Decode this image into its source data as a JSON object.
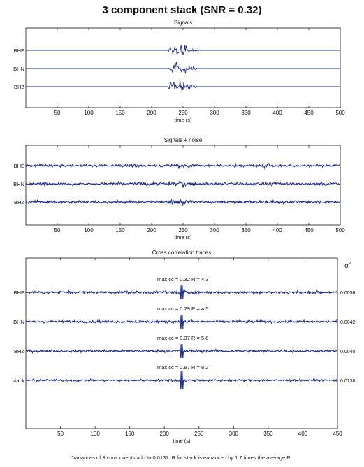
{
  "figure": {
    "title": "3 component stack (SNR = 0.32)",
    "footer": "Variances of 3 components add to 0.0137.  R for stack is enhanced by 1.7 times the average R."
  },
  "colors": {
    "trace": "#1f2f8f",
    "axis": "#111111",
    "background": "#ffffff"
  },
  "chart_data": [
    {
      "type": "line",
      "title": "Signals",
      "xlabel": "time (s)",
      "ylabel": "",
      "xlim": [
        0,
        500
      ],
      "xticks": [
        50,
        100,
        150,
        200,
        250,
        300,
        350,
        400,
        450,
        500
      ],
      "series": [
        {
          "name": "BHE",
          "burst_window": [
            225,
            275
          ],
          "amplitude": 1.0,
          "noise": 0.0
        },
        {
          "name": "BHN",
          "burst_window": [
            225,
            275
          ],
          "amplitude": 1.0,
          "noise": 0.0
        },
        {
          "name": "BHZ",
          "burst_window": [
            225,
            275
          ],
          "amplitude": 1.0,
          "noise": 0.0
        }
      ],
      "grid": false
    },
    {
      "type": "line",
      "title": "Signals + noise",
      "xlabel": "time (s)",
      "ylabel": "",
      "xlim": [
        0,
        500
      ],
      "xticks": [
        50,
        100,
        150,
        200,
        250,
        300,
        350,
        400,
        450,
        500
      ],
      "series": [
        {
          "name": "BHE",
          "burst_window": [
            225,
            275
          ],
          "amplitude": 0.5,
          "noise": 1.0
        },
        {
          "name": "BHN",
          "burst_window": [
            225,
            275
          ],
          "amplitude": 0.5,
          "noise": 1.0
        },
        {
          "name": "BHZ",
          "burst_window": [
            225,
            275
          ],
          "amplitude": 0.5,
          "noise": 1.0
        }
      ],
      "grid": false
    },
    {
      "type": "line",
      "title": "Cross correlation traces",
      "xlabel": "time (s)",
      "ylabel": "",
      "right_label": "σ",
      "xlim": [
        0,
        450
      ],
      "xticks": [
        50,
        100,
        150,
        200,
        250,
        300,
        350,
        400,
        450
      ],
      "series": [
        {
          "name": "BHE",
          "annotation": "max cc = 0.32      R = 4.3",
          "right_value": "0.0056",
          "spike_x": 225,
          "noise": 0.8
        },
        {
          "name": "BHN",
          "annotation": "max cc = 0.29      R = 4.5",
          "right_value": "0.0042",
          "spike_x": 225,
          "noise": 0.7
        },
        {
          "name": "BHZ",
          "annotation": "max cc = 0.37      R = 5.8",
          "right_value": "0.0040",
          "spike_x": 225,
          "noise": 0.75
        },
        {
          "name": "stack",
          "annotation": "max cc = 0.97      R = 8.2",
          "right_value": "0.0138",
          "spike_x": 225,
          "noise": 0.6
        }
      ],
      "grid": false
    }
  ]
}
